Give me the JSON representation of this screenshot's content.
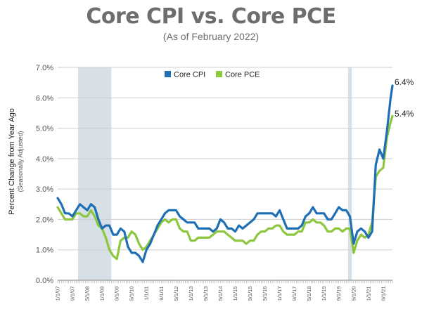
{
  "chart_data": {
    "type": "line",
    "title": "Core CPI vs. Core PCE",
    "subtitle": "(As of February 2022)",
    "ylabel": "Percent Change from Year Ago",
    "ylabel_sub": "(Seasonally Adjusted)",
    "ylim": [
      0,
      7
    ],
    "y_ticks": [
      "0.0%",
      "1.0%",
      "2.0%",
      "3.0%",
      "4.0%",
      "5.0%",
      "6.0%",
      "7.0%"
    ],
    "x_tick_labels": [
      "1/1/07",
      "9/1/07",
      "5/1/08",
      "1/1/09",
      "9/1/09",
      "5/1/10",
      "1/1/11",
      "9/1/11",
      "5/1/12",
      "1/1/13",
      "9/1/13",
      "5/1/14",
      "1/1/15",
      "9/1/15",
      "5/1/16",
      "1/1/17",
      "9/1/17",
      "5/1/18",
      "1/1/19",
      "9/1/19",
      "5/1/20",
      "1/1/21",
      "9/1/21"
    ],
    "recessions": [
      {
        "start": "12/1/07",
        "end": "6/1/09"
      },
      {
        "start": "2/1/20",
        "end": "4/1/20"
      }
    ],
    "legend_position": "top-center",
    "grid": true,
    "series": [
      {
        "name": "Core CPI",
        "color": "#1f6fb5",
        "end_label": "6.4%",
        "points": [
          [
            "1/1/07",
            2.7
          ],
          [
            "3/1/07",
            2.5
          ],
          [
            "5/1/07",
            2.2
          ],
          [
            "7/1/07",
            2.2
          ],
          [
            "9/1/07",
            2.1
          ],
          [
            "11/1/07",
            2.3
          ],
          [
            "1/1/08",
            2.5
          ],
          [
            "3/1/08",
            2.4
          ],
          [
            "5/1/08",
            2.3
          ],
          [
            "7/1/08",
            2.5
          ],
          [
            "9/1/08",
            2.4
          ],
          [
            "11/1/08",
            2.0
          ],
          [
            "1/1/09",
            1.7
          ],
          [
            "3/1/09",
            1.8
          ],
          [
            "5/1/09",
            1.8
          ],
          [
            "7/1/09",
            1.5
          ],
          [
            "9/1/09",
            1.5
          ],
          [
            "11/1/09",
            1.7
          ],
          [
            "1/1/10",
            1.6
          ],
          [
            "3/1/10",
            1.1
          ],
          [
            "5/1/10",
            0.9
          ],
          [
            "7/1/10",
            0.9
          ],
          [
            "9/1/10",
            0.8
          ],
          [
            "11/1/10",
            0.6
          ],
          [
            "1/1/11",
            1.0
          ],
          [
            "3/1/11",
            1.2
          ],
          [
            "5/1/11",
            1.5
          ],
          [
            "7/1/11",
            1.8
          ],
          [
            "9/1/11",
            2.0
          ],
          [
            "11/1/11",
            2.2
          ],
          [
            "1/1/12",
            2.3
          ],
          [
            "3/1/12",
            2.3
          ],
          [
            "5/1/12",
            2.3
          ],
          [
            "7/1/12",
            2.1
          ],
          [
            "9/1/12",
            2.0
          ],
          [
            "11/1/12",
            1.9
          ],
          [
            "1/1/13",
            1.9
          ],
          [
            "3/1/13",
            1.9
          ],
          [
            "5/1/13",
            1.7
          ],
          [
            "7/1/13",
            1.7
          ],
          [
            "9/1/13",
            1.7
          ],
          [
            "11/1/13",
            1.7
          ],
          [
            "1/1/14",
            1.6
          ],
          [
            "3/1/14",
            1.7
          ],
          [
            "5/1/14",
            2.0
          ],
          [
            "7/1/14",
            1.9
          ],
          [
            "9/1/14",
            1.7
          ],
          [
            "11/1/14",
            1.7
          ],
          [
            "1/1/15",
            1.6
          ],
          [
            "3/1/15",
            1.8
          ],
          [
            "5/1/15",
            1.7
          ],
          [
            "7/1/15",
            1.8
          ],
          [
            "9/1/15",
            1.9
          ],
          [
            "11/1/15",
            2.0
          ],
          [
            "1/1/16",
            2.2
          ],
          [
            "3/1/16",
            2.2
          ],
          [
            "5/1/16",
            2.2
          ],
          [
            "7/1/16",
            2.2
          ],
          [
            "9/1/16",
            2.2
          ],
          [
            "11/1/16",
            2.1
          ],
          [
            "1/1/17",
            2.3
          ],
          [
            "3/1/17",
            2.0
          ],
          [
            "5/1/17",
            1.7
          ],
          [
            "7/1/17",
            1.7
          ],
          [
            "9/1/17",
            1.7
          ],
          [
            "11/1/17",
            1.7
          ],
          [
            "1/1/18",
            1.8
          ],
          [
            "3/1/18",
            2.1
          ],
          [
            "5/1/18",
            2.2
          ],
          [
            "7/1/18",
            2.4
          ],
          [
            "9/1/18",
            2.2
          ],
          [
            "11/1/18",
            2.2
          ],
          [
            "1/1/19",
            2.2
          ],
          [
            "3/1/19",
            2.0
          ],
          [
            "5/1/19",
            2.0
          ],
          [
            "7/1/19",
            2.2
          ],
          [
            "9/1/19",
            2.4
          ],
          [
            "11/1/19",
            2.3
          ],
          [
            "1/1/20",
            2.3
          ],
          [
            "3/1/20",
            2.1
          ],
          [
            "5/1/20",
            1.2
          ],
          [
            "7/1/20",
            1.6
          ],
          [
            "9/1/20",
            1.7
          ],
          [
            "11/1/20",
            1.6
          ],
          [
            "1/1/21",
            1.4
          ],
          [
            "3/1/21",
            1.6
          ],
          [
            "5/1/21",
            3.8
          ],
          [
            "7/1/21",
            4.3
          ],
          [
            "9/1/21",
            4.0
          ],
          [
            "11/1/21",
            4.9
          ],
          [
            "1/1/22",
            6.0
          ],
          [
            "2/1/22",
            6.4
          ]
        ]
      },
      {
        "name": "Core PCE",
        "color": "#8dc63f",
        "end_label": "5.4%",
        "points": [
          [
            "1/1/07",
            2.4
          ],
          [
            "3/1/07",
            2.2
          ],
          [
            "5/1/07",
            2.0
          ],
          [
            "7/1/07",
            2.0
          ],
          [
            "9/1/07",
            2.0
          ],
          [
            "11/1/07",
            2.2
          ],
          [
            "1/1/08",
            2.2
          ],
          [
            "3/1/08",
            2.1
          ],
          [
            "5/1/08",
            2.1
          ],
          [
            "7/1/08",
            2.3
          ],
          [
            "9/1/08",
            2.1
          ],
          [
            "11/1/08",
            1.8
          ],
          [
            "1/1/09",
            1.7
          ],
          [
            "3/1/09",
            1.4
          ],
          [
            "5/1/09",
            1.0
          ],
          [
            "7/1/09",
            0.8
          ],
          [
            "9/1/09",
            0.7
          ],
          [
            "11/1/09",
            1.3
          ],
          [
            "1/1/10",
            1.4
          ],
          [
            "3/1/10",
            1.4
          ],
          [
            "5/1/10",
            1.6
          ],
          [
            "7/1/10",
            1.5
          ],
          [
            "9/1/10",
            1.2
          ],
          [
            "11/1/10",
            1.0
          ],
          [
            "1/1/11",
            1.1
          ],
          [
            "3/1/11",
            1.3
          ],
          [
            "5/1/11",
            1.5
          ],
          [
            "7/1/11",
            1.7
          ],
          [
            "9/1/11",
            1.9
          ],
          [
            "11/1/11",
            2.0
          ],
          [
            "1/1/12",
            1.9
          ],
          [
            "3/1/12",
            2.0
          ],
          [
            "5/1/12",
            2.0
          ],
          [
            "7/1/12",
            1.7
          ],
          [
            "9/1/12",
            1.6
          ],
          [
            "11/1/12",
            1.6
          ],
          [
            "1/1/13",
            1.3
          ],
          [
            "3/1/13",
            1.3
          ],
          [
            "5/1/13",
            1.4
          ],
          [
            "7/1/13",
            1.4
          ],
          [
            "9/1/13",
            1.4
          ],
          [
            "11/1/13",
            1.4
          ],
          [
            "1/1/14",
            1.5
          ],
          [
            "3/1/14",
            1.6
          ],
          [
            "5/1/14",
            1.6
          ],
          [
            "7/1/14",
            1.6
          ],
          [
            "9/1/14",
            1.5
          ],
          [
            "11/1/14",
            1.4
          ],
          [
            "1/1/15",
            1.3
          ],
          [
            "3/1/15",
            1.3
          ],
          [
            "5/1/15",
            1.3
          ],
          [
            "7/1/15",
            1.2
          ],
          [
            "9/1/15",
            1.3
          ],
          [
            "11/1/15",
            1.3
          ],
          [
            "1/1/16",
            1.5
          ],
          [
            "3/1/16",
            1.6
          ],
          [
            "5/1/16",
            1.6
          ],
          [
            "7/1/16",
            1.7
          ],
          [
            "9/1/16",
            1.7
          ],
          [
            "11/1/16",
            1.8
          ],
          [
            "1/1/17",
            1.8
          ],
          [
            "3/1/17",
            1.6
          ],
          [
            "5/1/17",
            1.5
          ],
          [
            "7/1/17",
            1.5
          ],
          [
            "9/1/17",
            1.5
          ],
          [
            "11/1/17",
            1.6
          ],
          [
            "1/1/18",
            1.6
          ],
          [
            "3/1/18",
            1.9
          ],
          [
            "5/1/18",
            1.9
          ],
          [
            "7/1/18",
            2.0
          ],
          [
            "9/1/18",
            1.9
          ],
          [
            "11/1/18",
            1.9
          ],
          [
            "1/1/19",
            1.8
          ],
          [
            "3/1/19",
            1.6
          ],
          [
            "5/1/19",
            1.6
          ],
          [
            "7/1/19",
            1.7
          ],
          [
            "9/1/19",
            1.7
          ],
          [
            "11/1/19",
            1.6
          ],
          [
            "1/1/20",
            1.7
          ],
          [
            "3/1/20",
            1.7
          ],
          [
            "5/1/20",
            0.9
          ],
          [
            "7/1/20",
            1.3
          ],
          [
            "9/1/20",
            1.5
          ],
          [
            "11/1/20",
            1.4
          ],
          [
            "1/1/21",
            1.5
          ],
          [
            "3/1/21",
            1.9
          ],
          [
            "5/1/21",
            3.4
          ],
          [
            "7/1/21",
            3.6
          ],
          [
            "9/1/21",
            3.7
          ],
          [
            "11/1/21",
            4.7
          ],
          [
            "1/1/22",
            5.2
          ],
          [
            "2/1/22",
            5.4
          ]
        ]
      }
    ]
  }
}
